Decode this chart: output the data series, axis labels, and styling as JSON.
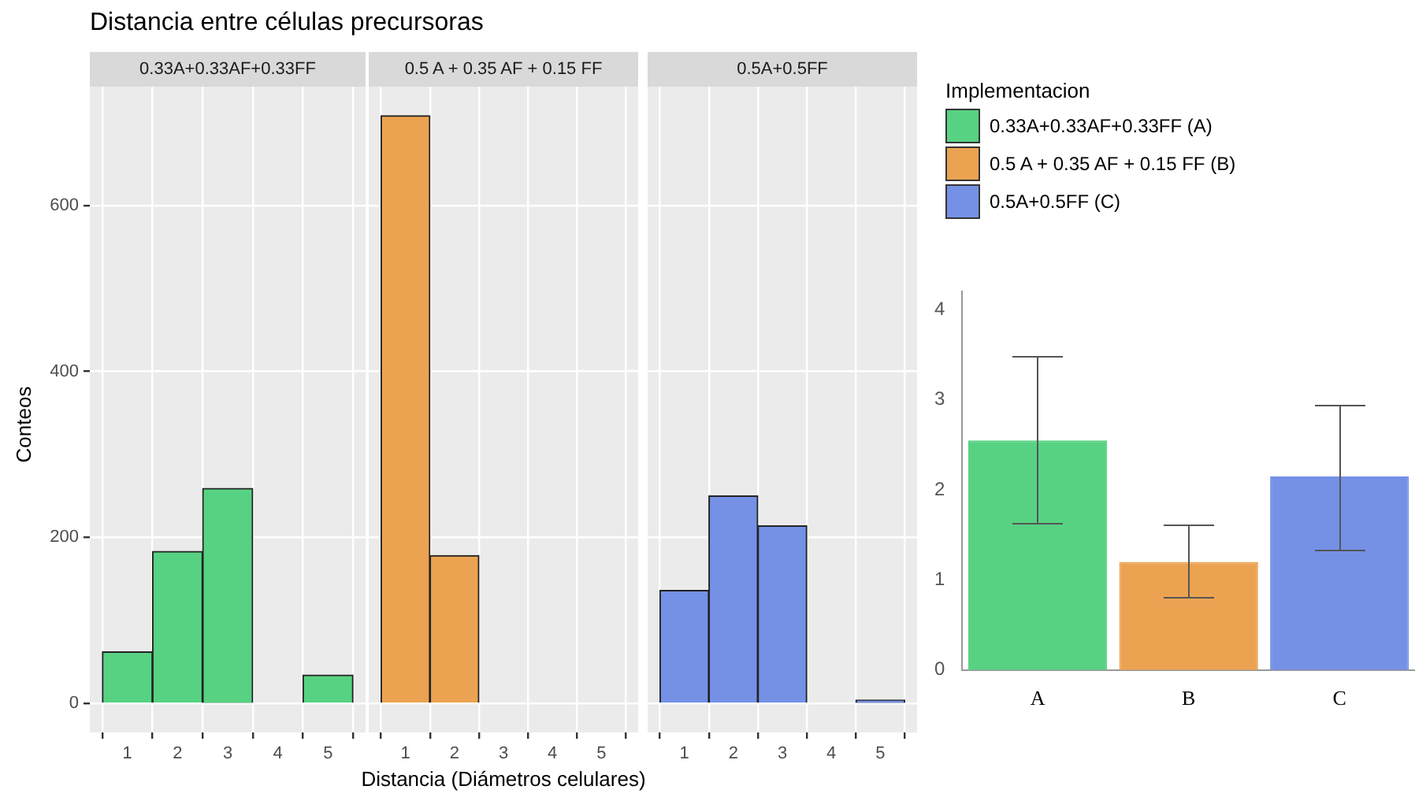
{
  "chart_data": [
    {
      "type": "histogram",
      "title": "Distancia entre células precursoras",
      "subtitle": "0.33A+0.33AF+0.33FF",
      "ylabel": "Conteos",
      "legend_title": "Implementacion",
      "legend": "right",
      "bins": [
        0.5,
        1.5,
        2.5,
        3.5,
        4.5,
        5.5
      ],
      "series": [
        {
          "name": "0.33A+0.33AF+0.33FF (A)",
          "color": "#57d282",
          "values": [
            62,
            183,
            259,
            0,
            34
          ]
        }
      ],
      "xlim": [
        0.25,
        5.75
      ],
      "xticks": [
        1,
        2,
        3,
        4,
        5
      ],
      "ylim": [
        -35,
        743
      ],
      "yticks": [
        0,
        200,
        400,
        600
      ],
      "grid": true
    },
    {
      "type": "histogram",
      "subtitle": "0.5 A + 0.35 AF + 0.15 FF",
      "xlabel": "Distancia (Diámetros celulares)",
      "legend": "right",
      "bins": [
        0.5,
        1.5,
        2.5,
        3.5,
        4.5,
        5.5
      ],
      "series": [
        {
          "name": "0.5 A + 0.35 AF + 0.15 FF (B)",
          "color": "#eba352",
          "values": [
            708,
            178,
            0,
            0,
            0
          ]
        }
      ],
      "xlim": [
        0.25,
        5.75
      ],
      "xticks": [
        1,
        2,
        3,
        4,
        5
      ],
      "ylim": [
        -35,
        743
      ],
      "yticks": [
        0,
        200,
        400,
        600
      ],
      "grid": true,
      "tick_labels": "x"
    },
    {
      "type": "histogram",
      "subtitle": "0.5A+0.5FF",
      "legend": "right",
      "bins": [
        0.5,
        1.5,
        2.5,
        3.5,
        4.5,
        5.5
      ],
      "series": [
        {
          "name": "0.5A+0.5FF (C)",
          "color": "#7491e6",
          "values": [
            136,
            250,
            214,
            0,
            4
          ]
        }
      ],
      "xlim": [
        0.25,
        5.75
      ],
      "xticks": [
        1,
        2,
        3,
        4,
        5
      ],
      "ylim": [
        -35,
        743
      ],
      "yticks": [
        0,
        200,
        400,
        600
      ],
      "grid": true,
      "tick_labels": "x"
    },
    {
      "type": "bar",
      "categories": [
        "A",
        "B",
        "C"
      ],
      "values": [
        2.55,
        1.2,
        2.15
      ],
      "colors": [
        "#57d282",
        "#eba352",
        "#7491e6"
      ],
      "errors": [
        [
          1.62,
          3.47
        ],
        [
          0.8,
          1.6
        ],
        [
          1.33,
          2.94
        ]
      ],
      "ylim": [
        0,
        4.2
      ],
      "yticks": [
        0,
        1,
        2,
        3,
        4
      ],
      "grid": false
    }
  ]
}
